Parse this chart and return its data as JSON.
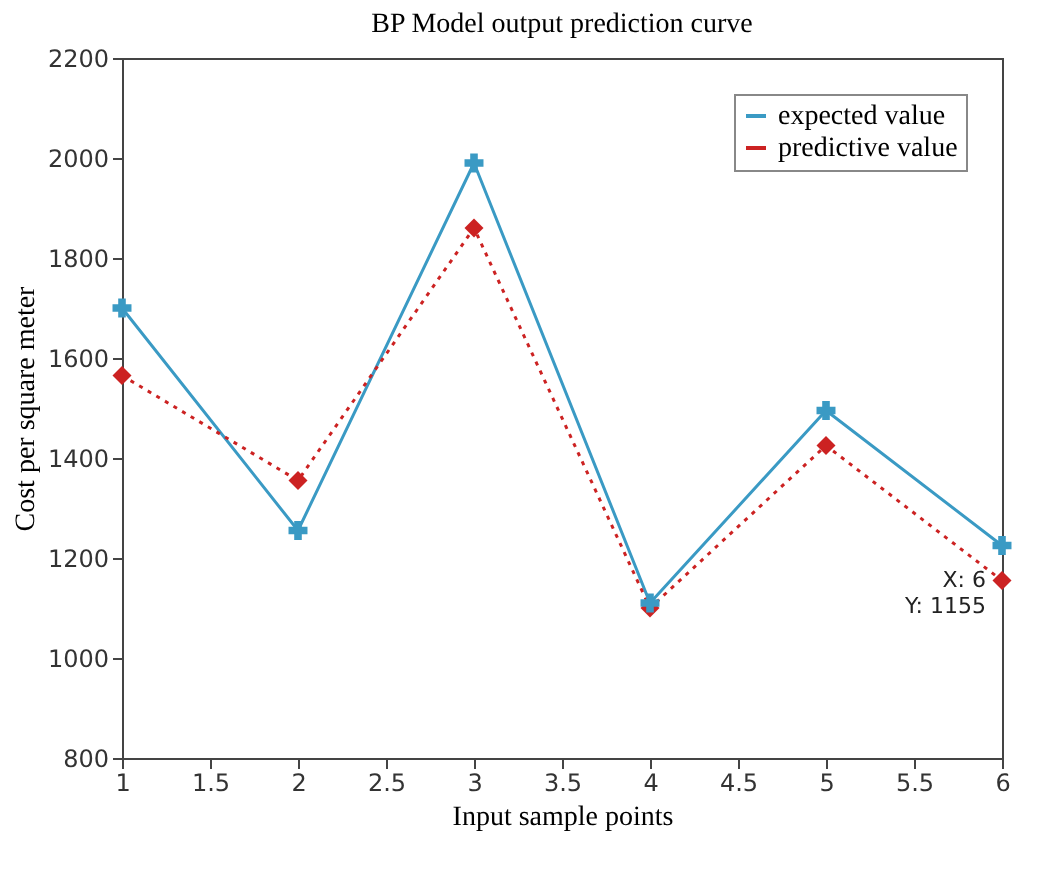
{
  "chart_data": {
    "type": "line",
    "title": "BP Model output prediction curve",
    "xlabel": "Input sample points",
    "ylabel": "Cost per square meter",
    "x": [
      1,
      2,
      3,
      4,
      5,
      6
    ],
    "series": [
      {
        "name": "expected value",
        "color": "#3a9ac4",
        "values": [
          1700,
          1255,
          1990,
          1110,
          1495,
          1225
        ],
        "marker": "cross",
        "line_style": "solid"
      },
      {
        "name": "predictive value",
        "color": "#cc2222",
        "values": [
          1565,
          1355,
          1860,
          1100,
          1425,
          1155
        ],
        "marker": "diamond",
        "line_style": "dotted"
      }
    ],
    "xlim": [
      1,
      6
    ],
    "xticks": [
      1,
      1.5,
      2,
      2.5,
      3,
      3.5,
      4,
      4.5,
      5,
      5.5,
      6
    ],
    "ylim": [
      800,
      2200
    ],
    "yticks": [
      800,
      1000,
      1200,
      1400,
      1600,
      1800,
      2000,
      2200
    ],
    "grid": false,
    "legend": "top right",
    "annotations": [
      {
        "text": "X: 6\nY: 1155",
        "x": 6,
        "y": 1155
      }
    ]
  }
}
